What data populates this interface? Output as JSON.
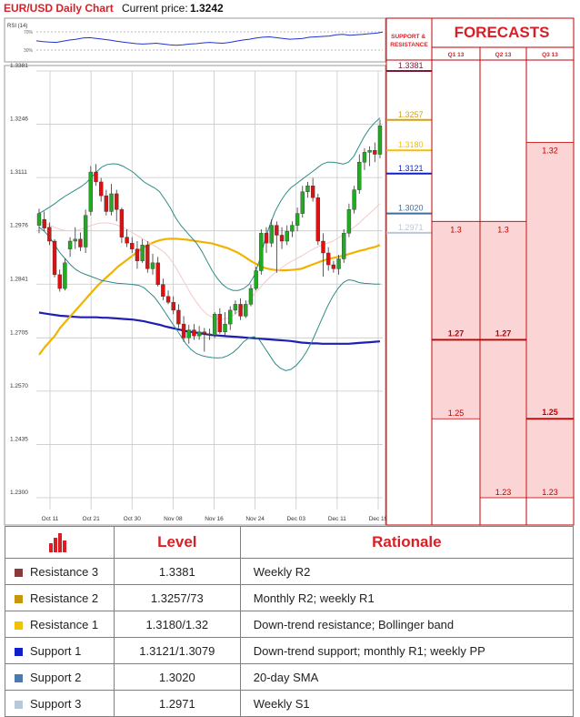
{
  "header": {
    "title": "EUR/USD Daily Chart",
    "price_label": "Current price:",
    "price_value": "1.3242"
  },
  "panel": {
    "support_resistance_title": "SUPPORT & RESISTANCE",
    "forecasts_title": "FORECASTS"
  },
  "rsi": {
    "label": "RSI (14)",
    "level_high": "70%",
    "level_low": "30%"
  },
  "chart_data": [
    {
      "type": "candlestick",
      "title": "EUR/USD Daily Chart",
      "y_ticks": [
        "1.3381",
        "1.3246",
        "1.3111",
        "1.2976",
        "1.2841",
        "1.2705",
        "1.2570",
        "1.2435",
        "1.2300"
      ],
      "ylim": [
        1.23,
        1.3381
      ],
      "x_ticks": [
        "Oct 11",
        "Oct 21",
        "Oct 30",
        "Nov 08",
        "Nov 16",
        "Nov 24",
        "Dec 03",
        "Dec 11",
        "Dec 19"
      ],
      "grid": true,
      "candles": [
        [
          1.299,
          1.302,
          1.2985,
          1.3032,
          1.297
        ],
        [
          1.3005,
          1.2983,
          1.2995,
          1.3025,
          1.2975
        ],
        [
          1.2985,
          1.295,
          1.2985,
          1.2997,
          1.294
        ],
        [
          1.295,
          1.2865,
          1.295,
          1.2955,
          1.2858
        ],
        [
          1.2865,
          1.283,
          1.287,
          1.2878,
          1.2822
        ],
        [
          1.283,
          1.2895,
          1.283,
          1.2905,
          1.2825
        ],
        [
          1.293,
          1.295,
          1.2928,
          1.296,
          1.291
        ],
        [
          1.295,
          1.2955,
          1.2945,
          1.2985,
          1.293
        ],
        [
          1.2955,
          1.2935,
          1.2955,
          1.2972,
          1.2925
        ],
        [
          1.2935,
          1.3015,
          1.2935,
          1.303,
          1.292
        ],
        [
          1.3025,
          1.3125,
          1.302,
          1.314,
          1.3015
        ],
        [
          1.3125,
          1.31,
          1.3135,
          1.3145,
          1.309
        ],
        [
          1.31,
          1.3065,
          1.3105,
          1.311,
          1.305
        ],
        [
          1.3065,
          1.3025,
          1.307,
          1.308,
          1.3015
        ],
        [
          1.3025,
          1.307,
          1.302,
          1.3095,
          1.3015
        ],
        [
          1.307,
          1.303,
          1.307,
          1.308,
          1.3
        ],
        [
          1.303,
          1.296,
          1.303,
          1.3035,
          1.2945
        ],
        [
          1.296,
          1.2945,
          1.2965,
          1.298,
          1.2935
        ],
        [
          1.2945,
          1.293,
          1.295,
          1.296,
          1.292
        ],
        [
          1.293,
          1.29,
          1.2935,
          1.295,
          1.288
        ],
        [
          1.29,
          1.294,
          1.2905,
          1.2955,
          1.2895
        ],
        [
          1.294,
          1.288,
          1.2945,
          1.295,
          1.287
        ],
        [
          1.288,
          1.2895,
          1.2875,
          1.2918,
          1.2865
        ],
        [
          1.2895,
          1.284,
          1.29,
          1.291,
          1.2835
        ],
        [
          1.284,
          1.281,
          1.2845,
          1.2855,
          1.28
        ],
        [
          1.281,
          1.2795,
          1.2815,
          1.2825,
          1.279
        ],
        [
          1.2795,
          1.2775,
          1.28,
          1.281,
          1.2765
        ],
        [
          1.2775,
          1.274,
          1.278,
          1.279,
          1.273
        ],
        [
          1.274,
          1.2705,
          1.2745,
          1.276,
          1.2695
        ],
        [
          1.2705,
          1.2725,
          1.27,
          1.2738,
          1.269
        ],
        [
          1.2725,
          1.271,
          1.273,
          1.274,
          1.27
        ],
        [
          1.271,
          1.272,
          1.2705,
          1.2735,
          1.27
        ],
        [
          1.272,
          1.2715,
          1.2725,
          1.273,
          1.267
        ],
        [
          1.2715,
          1.2712,
          1.272,
          1.2728,
          1.27
        ],
        [
          1.2712,
          1.2765,
          1.271,
          1.277,
          1.2705
        ],
        [
          1.2765,
          1.272,
          1.277,
          1.278,
          1.2715
        ],
        [
          1.272,
          1.274,
          1.272,
          1.277,
          1.271
        ],
        [
          1.274,
          1.2775,
          1.2735,
          1.2785,
          1.2725
        ],
        [
          1.2775,
          1.279,
          1.277,
          1.28,
          1.2765
        ],
        [
          1.279,
          1.276,
          1.2795,
          1.2805,
          1.275
        ],
        [
          1.276,
          1.279,
          1.276,
          1.28,
          1.2755
        ],
        [
          1.279,
          1.283,
          1.2785,
          1.284,
          1.2785
        ],
        [
          1.283,
          1.2875,
          1.283,
          1.2885,
          1.2825
        ],
        [
          1.2875,
          1.297,
          1.287,
          1.298,
          1.2865
        ],
        [
          1.297,
          1.2945,
          1.2975,
          1.2985,
          1.292
        ],
        [
          1.2945,
          1.299,
          1.2945,
          1.3005,
          1.2935
        ],
        [
          1.299,
          1.2965,
          1.2995,
          1.3,
          1.287
        ],
        [
          1.2965,
          1.295,
          1.2975,
          1.2985,
          1.293
        ],
        [
          1.295,
          1.2975,
          1.2945,
          1.299,
          1.294
        ],
        [
          1.2975,
          1.299,
          1.297,
          1.3,
          1.296
        ],
        [
          1.299,
          1.302,
          1.2985,
          1.3035,
          1.2975
        ],
        [
          1.302,
          1.3075,
          1.3015,
          1.309,
          1.301
        ],
        [
          1.3075,
          1.309,
          1.307,
          1.31,
          1.306
        ],
        [
          1.309,
          1.306,
          1.3095,
          1.311,
          1.305
        ],
        [
          1.306,
          1.295,
          1.3065,
          1.307,
          1.294
        ],
        [
          1.295,
          1.292,
          1.2955,
          1.297,
          1.286
        ],
        [
          1.292,
          1.289,
          1.2925,
          1.2935,
          1.2875
        ],
        [
          1.289,
          1.288,
          1.2895,
          1.29,
          1.287
        ],
        [
          1.288,
          1.2905,
          1.2875,
          1.2915,
          1.2865
        ],
        [
          1.2905,
          1.297,
          1.29,
          1.298,
          1.2895
        ],
        [
          1.297,
          1.303,
          1.2965,
          1.3045,
          1.296
        ],
        [
          1.303,
          1.308,
          1.3025,
          1.309,
          1.302
        ],
        [
          1.308,
          1.315,
          1.3075,
          1.317,
          1.307
        ],
        [
          1.315,
          1.3175,
          1.3145,
          1.3185,
          1.313
        ],
        [
          1.3175,
          1.318,
          1.3155,
          1.319,
          1.314
        ],
        [
          1.318,
          1.317,
          1.319,
          1.32,
          1.315
        ],
        [
          1.317,
          1.3242,
          1.3165,
          1.3258,
          1.316
        ]
      ],
      "indicators": [
        {
          "name": "SMA long",
          "color": "#1f1fb4",
          "values": [
            1.2769,
            1.2767,
            1.2765,
            1.2763,
            1.2761,
            1.276,
            1.2759,
            1.2758,
            1.2757,
            1.2757,
            1.2757,
            1.2757,
            1.2756,
            1.2756,
            1.2755,
            1.2754,
            1.2753,
            1.2752,
            1.2751,
            1.2749,
            1.2747,
            1.2744,
            1.2741,
            1.2738,
            1.2734,
            1.2731,
            1.2728,
            1.2725,
            1.2722,
            1.272,
            1.2718,
            1.2716,
            1.2714,
            1.2712,
            1.2711,
            1.271,
            1.2709,
            1.2708,
            1.2707,
            1.2706,
            1.2705,
            1.2704,
            1.2703,
            1.2702,
            1.2701,
            1.27,
            1.2699,
            1.2698,
            1.2697,
            1.2695,
            1.2693,
            1.2692,
            1.2691,
            1.2691,
            1.269,
            1.269,
            1.269,
            1.269,
            1.269,
            1.269,
            1.2691,
            1.2692,
            1.2693,
            1.2694,
            1.2695,
            1.2696
          ]
        },
        {
          "name": "SMA medium",
          "color": "#f0b400",
          "values": [
            1.2662,
            1.268,
            1.2695,
            1.271,
            1.273,
            1.2745,
            1.276,
            1.2775,
            1.279,
            1.2805,
            1.282,
            1.2835,
            1.2848,
            1.286,
            1.2872,
            1.2885,
            1.2895,
            1.2905,
            1.2915,
            1.2925,
            1.2935,
            1.2942,
            1.2948,
            1.2952,
            1.2955,
            1.2956,
            1.2956,
            1.2955,
            1.2954,
            1.2952,
            1.295,
            1.2948,
            1.2946,
            1.2944,
            1.294,
            1.2936,
            1.2932,
            1.2926,
            1.292,
            1.2912,
            1.2903,
            1.2895,
            1.2888,
            1.2882,
            1.2879,
            1.2877,
            1.2876,
            1.2876,
            1.2877,
            1.2878,
            1.288,
            1.2885,
            1.289,
            1.2895,
            1.29,
            1.2904,
            1.2907,
            1.291,
            1.2913,
            1.2917,
            1.2921,
            1.2925,
            1.2928,
            1.2932,
            1.2935,
            1.294
          ]
        },
        {
          "name": "Bollinger upper",
          "color": "#2e8b86",
          "values": [
            1.302,
            1.3028,
            1.3036,
            1.3045,
            1.3055,
            1.3064,
            1.3072,
            1.308,
            1.3088,
            1.3098,
            1.3112,
            1.3126,
            1.3138,
            1.3144,
            1.3146,
            1.3145,
            1.314,
            1.3132,
            1.3124,
            1.3112,
            1.31,
            1.3092,
            1.3085,
            1.3075,
            1.3055,
            1.3035,
            1.301,
            1.299,
            1.2975,
            1.296,
            1.2945,
            1.2925,
            1.29,
            1.2875,
            1.2855,
            1.284,
            1.283,
            1.2825,
            1.2825,
            1.283,
            1.284,
            1.2862,
            1.29,
            1.295,
            1.299,
            1.3025,
            1.305,
            1.307,
            1.3085,
            1.3095,
            1.3105,
            1.3115,
            1.3125,
            1.3135,
            1.3145,
            1.315,
            1.315,
            1.3148,
            1.3145,
            1.315,
            1.3165,
            1.319,
            1.3215,
            1.3235,
            1.325,
            1.3262
          ]
        },
        {
          "name": "Bollinger lower",
          "color": "#2e8b86",
          "values": [
            1.2985,
            1.2975,
            1.296,
            1.294,
            1.292,
            1.2905,
            1.289,
            1.2878,
            1.287,
            1.2865,
            1.286,
            1.2855,
            1.285,
            1.2848,
            1.2845,
            1.2843,
            1.2842,
            1.2841,
            1.284,
            1.2838,
            1.2832,
            1.282,
            1.2808,
            1.279,
            1.277,
            1.275,
            1.273,
            1.271,
            1.269,
            1.2675,
            1.2665,
            1.266,
            1.2657,
            1.2655,
            1.2654,
            1.2655,
            1.266,
            1.2668,
            1.268,
            1.2695,
            1.2705,
            1.2708,
            1.27,
            1.268,
            1.266,
            1.264,
            1.2628,
            1.2622,
            1.2625,
            1.2635,
            1.265,
            1.267,
            1.2695,
            1.2725,
            1.2755,
            1.2785,
            1.281,
            1.283,
            1.2845,
            1.2852,
            1.285,
            1.2845,
            1.2843,
            1.2842,
            1.2841,
            1.2841
          ]
        },
        {
          "name": "Bollinger middle",
          "color": "#f4c9c9",
          "values": [
            1.3,
            1.2995,
            1.299,
            1.2985,
            1.298,
            1.2977,
            1.2976,
            1.2977,
            1.298,
            1.2985,
            1.299,
            1.2994,
            1.2996,
            1.2996,
            1.2994,
            1.299,
            1.2985,
            1.2978,
            1.297,
            1.2962,
            1.2954,
            1.2946,
            1.2938,
            1.293,
            1.292,
            1.2905,
            1.2885,
            1.2862,
            1.2838,
            1.2815,
            1.2795,
            1.2778,
            1.2765,
            1.2757,
            1.2752,
            1.2752,
            1.2755,
            1.2762,
            1.2772,
            1.2785,
            1.28,
            1.2815,
            1.283,
            1.2845,
            1.2858,
            1.287,
            1.288,
            1.289,
            1.2898,
            1.2905,
            1.2912,
            1.292,
            1.2928,
            1.2935,
            1.294,
            1.2945,
            1.295,
            1.2958,
            1.2966,
            1.2975,
            1.2985,
            1.2995,
            1.3008,
            1.302,
            1.3032,
            1.3045
          ]
        }
      ]
    },
    {
      "type": "line",
      "title": "RSI (14)",
      "y_ticks": [
        "70%",
        "30%"
      ],
      "values": [
        48,
        46,
        45,
        44,
        47,
        50,
        52,
        55,
        56,
        54,
        52,
        50,
        47,
        45,
        43,
        41,
        40,
        41,
        42,
        40,
        38,
        37,
        38,
        40,
        41,
        43,
        44,
        43,
        42,
        44,
        47,
        50,
        52,
        55,
        57,
        58,
        56,
        54,
        52,
        53,
        54,
        57,
        58,
        59,
        60,
        63,
        64,
        62,
        63,
        64,
        66,
        67,
        70
      ]
    }
  ],
  "levels_panel": [
    {
      "value": "1.3381",
      "color": "#7a1a3a"
    },
    {
      "value": "1.3257",
      "color": "#d4a017"
    },
    {
      "value": "1.3180",
      "color": "#f2c200"
    },
    {
      "value": "1.3121",
      "color": "#1020c8"
    },
    {
      "value": "1.3020",
      "color": "#3d6e99"
    },
    {
      "value": "1.2971",
      "color": "#b9c8d8"
    }
  ],
  "forecasts": {
    "columns": [
      "Q1 13",
      "Q2 13",
      "Q3 13"
    ],
    "scale_top": 1.3381,
    "scale_bottom": 1.23,
    "ranges": [
      {
        "top": 1.3,
        "bottom": 1.25,
        "center": 1.27,
        "top_label": "1.3",
        "center_label": "1.27",
        "bottom_label": "1.25"
      },
      {
        "top": 1.3,
        "bottom": 1.23,
        "center": 1.27,
        "top_label": "1.3",
        "center_label": "1.27",
        "bottom_label": "1.23"
      },
      {
        "top": 1.32,
        "bottom": 1.23,
        "center": 1.25,
        "top_label": "1.32",
        "center_label": "1.25",
        "bottom_label": "1.23"
      }
    ]
  },
  "table": {
    "headers": [
      "Level",
      "Rationale"
    ],
    "rows": [
      {
        "name": "Resistance 3",
        "level": "1.3381",
        "rationale": "Weekly R2",
        "color": "#8b3a3a"
      },
      {
        "name": "Resistance 2",
        "level": "1.3257/73",
        "rationale": "Monthly R2; weekly R1",
        "color": "#c8960c"
      },
      {
        "name": "Resistance 1",
        "level": "1.3180/1.32",
        "rationale": "Down-trend resistance; Bollinger band",
        "color": "#f2c200"
      },
      {
        "name": "Support 1",
        "level": "1.3121/1.3079",
        "rationale": "Down-trend support; monthly R1; weekly PP",
        "color": "#1020c8"
      },
      {
        "name": "Support 2",
        "level": "1.3020",
        "rationale": "20-day SMA",
        "color": "#4a7ab0"
      },
      {
        "name": "Support 3",
        "level": "1.2971",
        "rationale": "Weekly S1",
        "color": "#b9c8d8"
      }
    ]
  }
}
